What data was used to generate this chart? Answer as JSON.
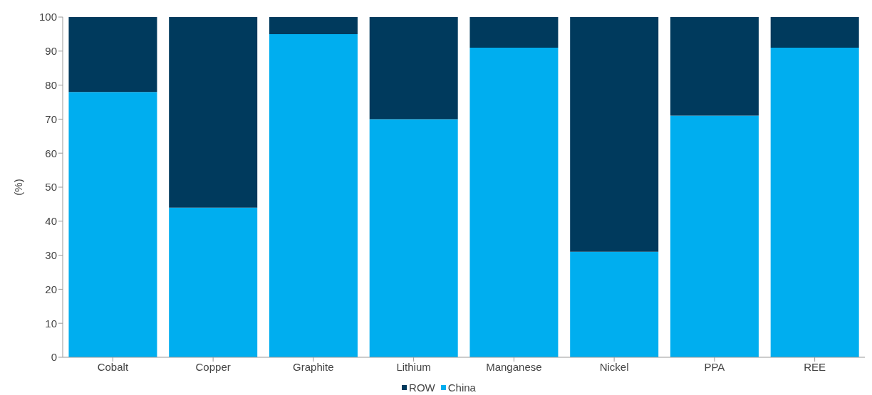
{
  "chart_data": {
    "type": "bar",
    "stacked": true,
    "ylabel": "(%)",
    "categories": [
      "Cobalt",
      "Copper",
      "Graphite",
      "Lithium",
      "Manganese",
      "Nickel",
      "PPA",
      "REE"
    ],
    "series": [
      {
        "name": "China",
        "color": "#00aeef",
        "values": [
          78,
          44,
          95,
          70,
          91,
          31,
          71,
          91
        ]
      },
      {
        "name": "ROW",
        "color": "#003a5d",
        "values": [
          22,
          56,
          5,
          30,
          9,
          69,
          29,
          9
        ]
      }
    ],
    "ylim": [
      0,
      100
    ],
    "yticks": [
      0,
      10,
      20,
      30,
      40,
      50,
      60,
      70,
      80,
      90,
      100
    ],
    "grid": false,
    "legend": "bottom"
  }
}
